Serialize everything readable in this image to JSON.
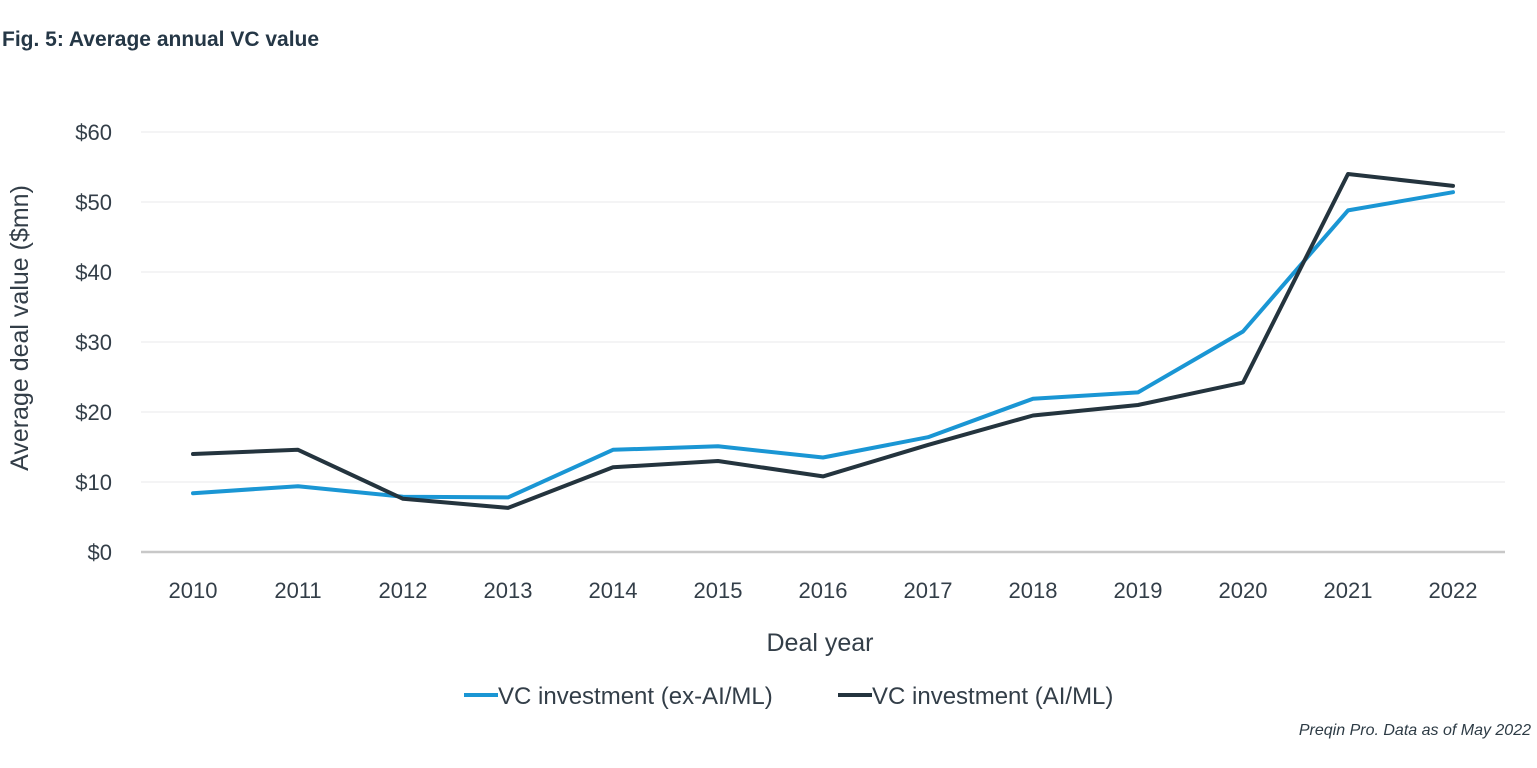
{
  "title": "Fig. 5: Average annual VC value",
  "source": "Preqin Pro. Data as of May 2022",
  "colors": {
    "ex_ai": "#1a96d4",
    "ai": "#24343e",
    "grid": "#e9eaeb",
    "axis": "#c8c8c8"
  },
  "chart_data": {
    "type": "line",
    "title": "Fig. 5: Average annual VC value",
    "xlabel": "Deal year",
    "ylabel": "Average deal value ($mn)",
    "ylim": [
      0,
      60
    ],
    "yticks": [
      0,
      10,
      20,
      30,
      40,
      50,
      60
    ],
    "ytick_labels": [
      "$0",
      "$10",
      "$20",
      "$30",
      "$40",
      "$50",
      "$60"
    ],
    "categories": [
      "2010",
      "2011",
      "2012",
      "2013",
      "2014",
      "2015",
      "2016",
      "2017",
      "2018",
      "2019",
      "2020",
      "2021",
      "2022"
    ],
    "series": [
      {
        "name": "VC investment (ex-AI/ML)",
        "color": "#1a96d4",
        "values": [
          8.4,
          9.4,
          7.9,
          7.8,
          14.6,
          15.1,
          13.5,
          16.4,
          21.9,
          22.8,
          31.5,
          48.8,
          51.4
        ]
      },
      {
        "name": "VC investment (AI/ML)",
        "color": "#24343e",
        "values": [
          14.0,
          14.6,
          7.6,
          6.3,
          12.1,
          13.0,
          10.8,
          15.3,
          19.5,
          21.0,
          24.2,
          54.0,
          52.3
        ]
      }
    ],
    "grid": true,
    "legend": "bottom-center"
  }
}
